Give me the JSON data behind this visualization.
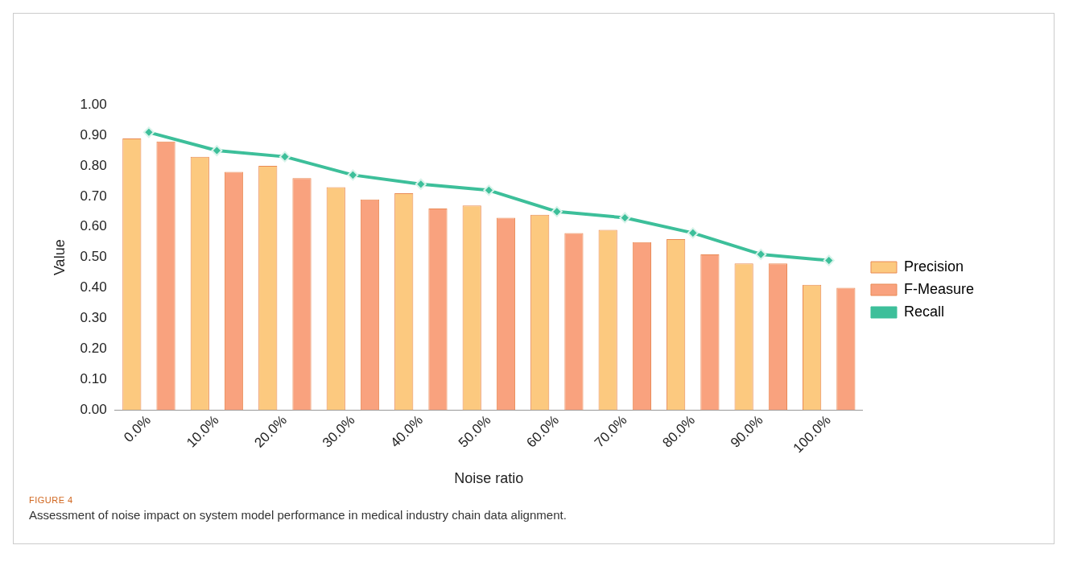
{
  "chart_data": {
    "type": "bar",
    "xlabel": "Noise ratio",
    "ylabel": "Value",
    "categories": [
      "0.0%",
      "10.0%",
      "20.0%",
      "30.0%",
      "40.0%",
      "50.0%",
      "60.0%",
      "70.0%",
      "80.0%",
      "90.0%",
      "100.0%"
    ],
    "series": [
      {
        "name": "Precision",
        "color": "#fcc97f",
        "values": [
          0.89,
          0.83,
          0.8,
          0.73,
          0.71,
          0.67,
          0.64,
          0.59,
          0.56,
          0.48,
          0.41
        ]
      },
      {
        "name": "F-Measure",
        "color": "#f9a27e",
        "values": [
          0.88,
          0.78,
          0.76,
          0.69,
          0.66,
          0.63,
          0.58,
          0.55,
          0.51,
          0.48,
          0.4
        ]
      },
      {
        "name": "Recall",
        "type": "line",
        "color": "#3dbf9a",
        "values": [
          0.91,
          0.85,
          0.83,
          0.77,
          0.74,
          0.72,
          0.65,
          0.63,
          0.58,
          0.51,
          0.49
        ]
      }
    ],
    "ylim": [
      0,
      1
    ],
    "yticks": [
      {
        "value": 0,
        "label": "0.00"
      },
      {
        "value": 0.1,
        "label": "0.10"
      },
      {
        "value": 0.2,
        "label": "0.20"
      },
      {
        "value": 0.3,
        "label": "0.30"
      },
      {
        "value": 0.4,
        "label": "0.40"
      },
      {
        "value": 0.5,
        "label": "0.50"
      },
      {
        "value": 0.6,
        "label": "0.60"
      },
      {
        "value": 0.7,
        "label": "0.70"
      },
      {
        "value": 0.8,
        "label": "0.80"
      },
      {
        "value": 0.9,
        "label": "0.90"
      },
      {
        "value": 1,
        "label": "1.00"
      }
    ],
    "grid": false,
    "legend": "right",
    "marker": "diamond",
    "annotations": [
      "FIGURE 4",
      "Assessment of noise impact on system model performance in medical industry chain data alignment."
    ]
  }
}
